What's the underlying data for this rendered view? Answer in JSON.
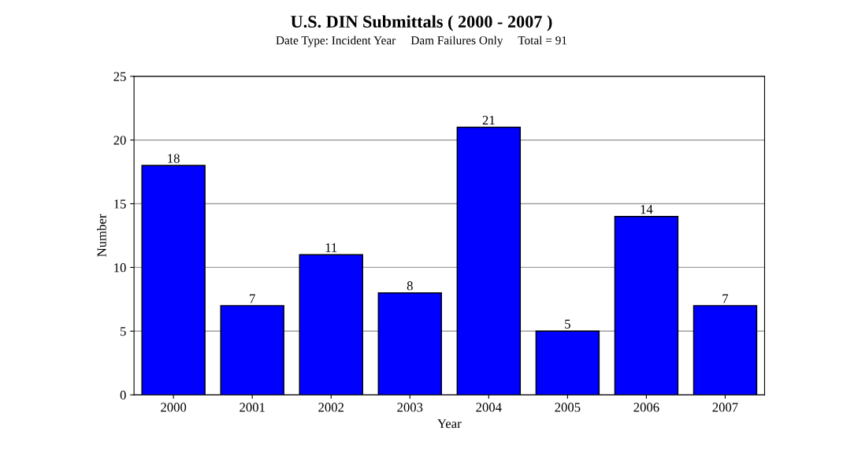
{
  "chart_data": {
    "type": "bar",
    "title": "U.S. DIN Submittals ( 2000 - 2007 )",
    "subtitle": "Date Type: Incident Year     Dam Failures Only     Total = 91",
    "xlabel": "Year",
    "ylabel": "Number",
    "categories": [
      "2000",
      "2001",
      "2002",
      "2003",
      "2004",
      "2005",
      "2006",
      "2007"
    ],
    "values": [
      18,
      7,
      11,
      8,
      21,
      5,
      14,
      7
    ],
    "color": "#0000ff",
    "ylim": [
      0,
      25
    ],
    "yticks": [
      0,
      5,
      10,
      15,
      20,
      25
    ],
    "grid": "y",
    "data_labels": true
  }
}
